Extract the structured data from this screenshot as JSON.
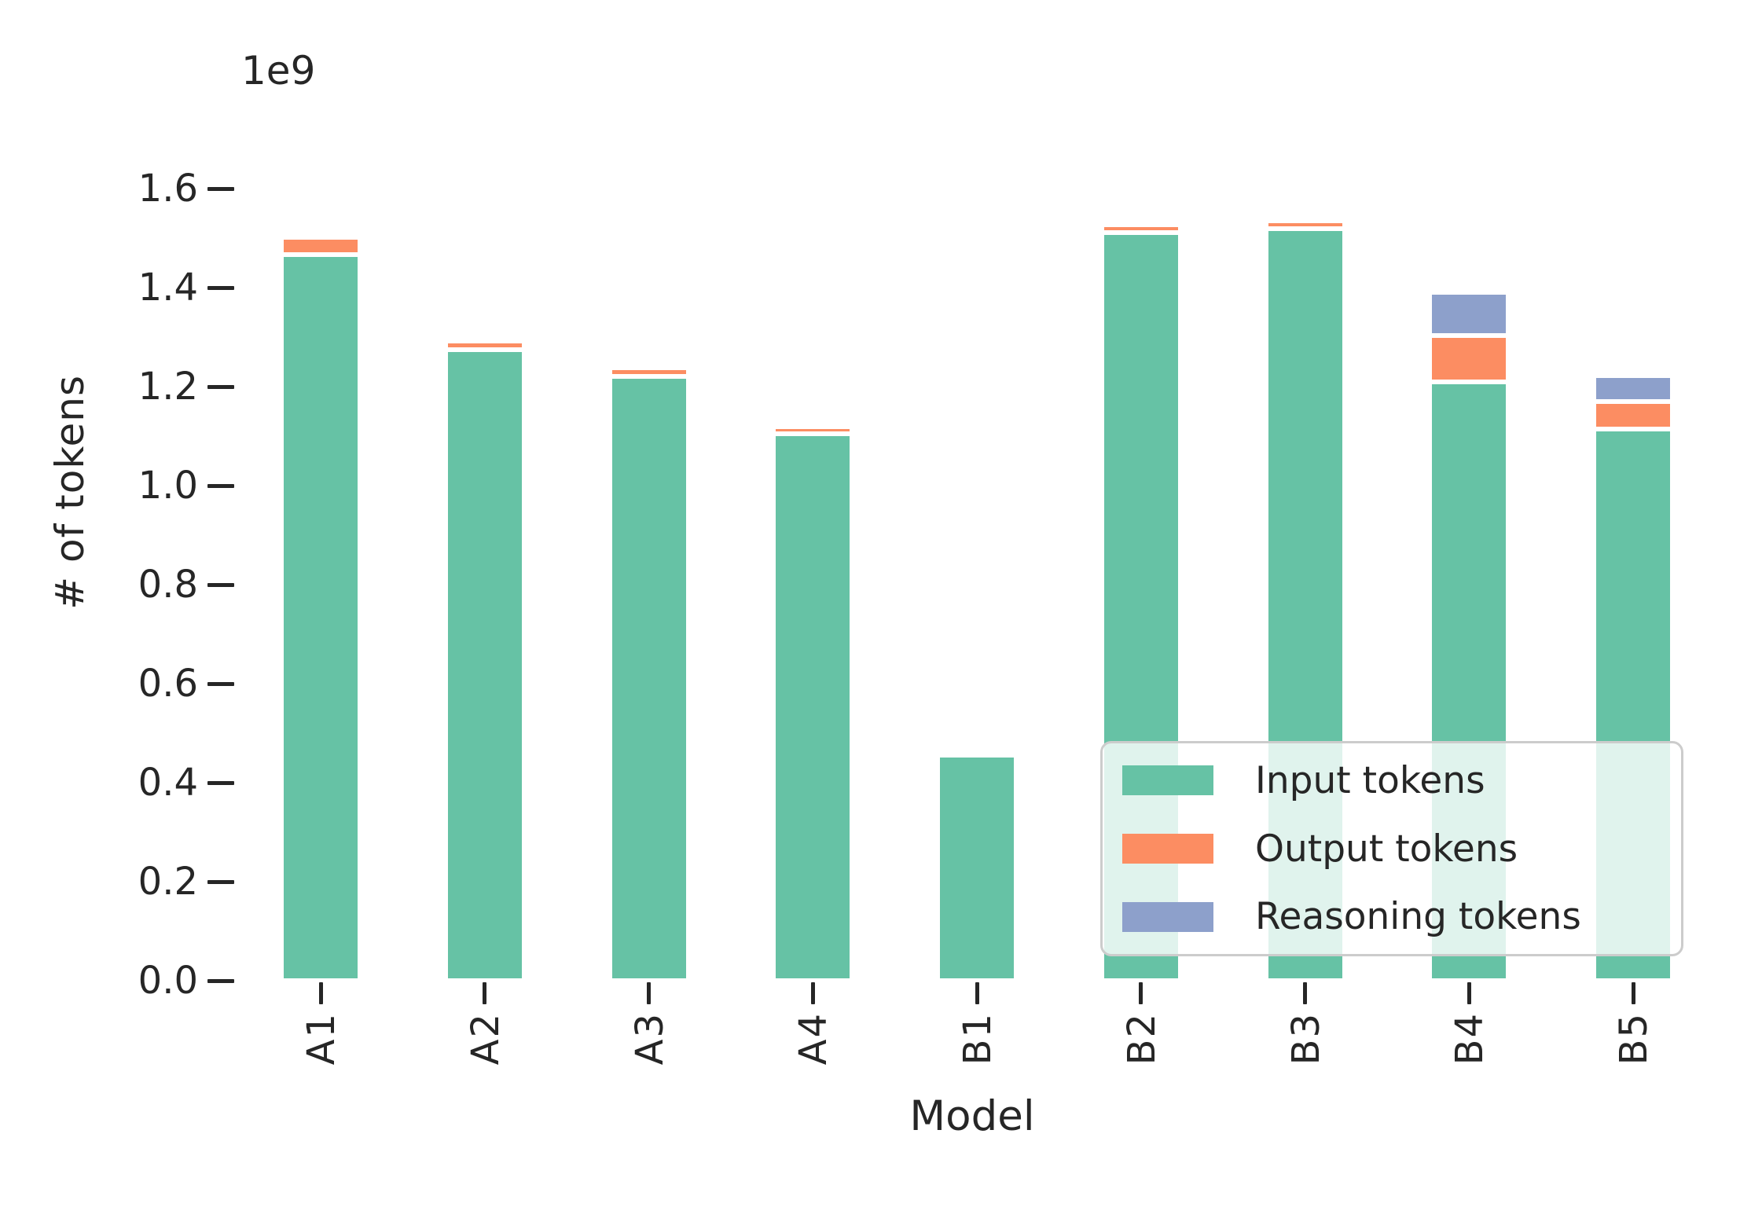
{
  "chart_data": {
    "type": "bar",
    "stacked": true,
    "title": "",
    "xlabel": "Model",
    "ylabel": "# of tokens",
    "y_offset_label": "1e9",
    "unit": "tokens (values in units of 1e9)",
    "categories": [
      "A1",
      "A2",
      "A3",
      "A4",
      "B1",
      "B2",
      "B3",
      "B4",
      "B5"
    ],
    "series": [
      {
        "name": "Input tokens",
        "color": "#66c2a5",
        "values": [
          1.467,
          1.274,
          1.22,
          1.105,
          0.455,
          1.511,
          1.519,
          1.21,
          1.115
        ]
      },
      {
        "name": "Output tokens",
        "color": "#fc8d62",
        "values": [
          0.035,
          0.018,
          0.018,
          0.014,
          0,
          0.016,
          0.016,
          0.093,
          0.055
        ]
      },
      {
        "name": "Reasoning tokens",
        "color": "#8da0cb",
        "values": [
          0,
          0,
          0,
          0,
          0,
          0,
          0,
          0.087,
          0.053
        ]
      }
    ],
    "totals": [
      1.502,
      1.292,
      1.238,
      1.119,
      0.455,
      1.527,
      1.535,
      1.39,
      1.223
    ],
    "yticks": [
      0.0,
      0.2,
      0.4,
      0.6,
      0.8,
      1.0,
      1.2,
      1.4,
      1.6
    ],
    "ytick_labels": [
      "0.0",
      "0.2",
      "0.4",
      "0.6",
      "0.8",
      "1.0",
      "1.2",
      "1.4",
      "1.6"
    ],
    "ylim": [
      0,
      1.78
    ],
    "grid": false,
    "legend": {
      "position": "lower right"
    },
    "colors": {
      "input": "#66c2a5",
      "output": "#fc8d62",
      "reasoning": "#8da0cb",
      "text": "#262626",
      "legend_border": "#cccccc",
      "bar_edge": "#ffffff"
    }
  }
}
